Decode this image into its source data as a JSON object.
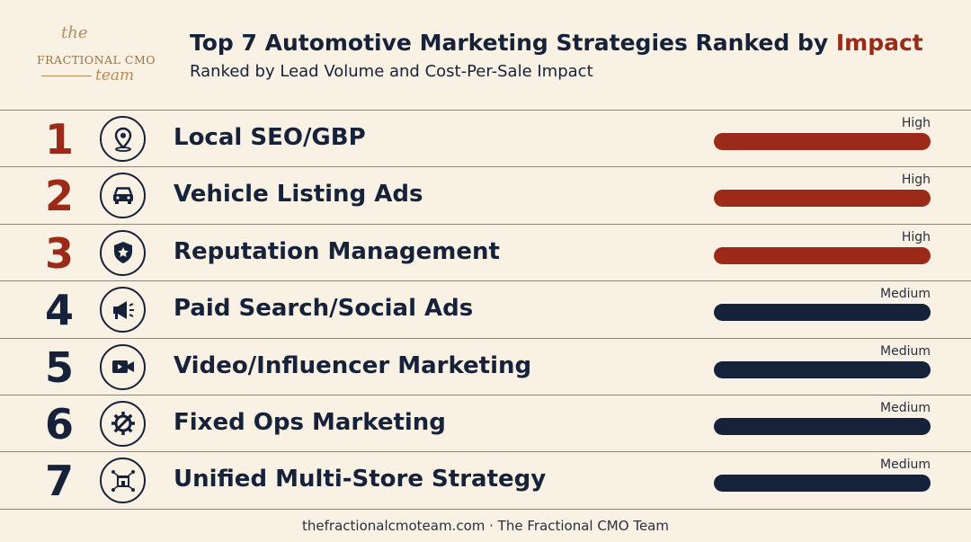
{
  "logo": {
    "the": "the",
    "brand": "FRACTIONAL CMO",
    "team": "team"
  },
  "header": {
    "title_main": "Top 7 Automotive Marketing Strategies Ranked by ",
    "title_accent": "Impact",
    "subtitle": "Ranked by Lead Volume and Cost-Per-Sale Impact"
  },
  "colors": {
    "high": "#9b2b18",
    "medium": "#16213a",
    "background": "#f8f1e4"
  },
  "strategies": [
    {
      "rank": "1",
      "label": "Local SEO/GBP",
      "impact": "High",
      "icon": "map-pin-icon"
    },
    {
      "rank": "2",
      "label": "Vehicle Listing Ads",
      "impact": "High",
      "icon": "car-icon"
    },
    {
      "rank": "3",
      "label": "Reputation Management",
      "impact": "High",
      "icon": "shield-star-icon"
    },
    {
      "rank": "4",
      "label": "Paid Search/Social Ads",
      "impact": "Medium",
      "icon": "megaphone-icon"
    },
    {
      "rank": "5",
      "label": "Video/Influencer Marketing",
      "impact": "Medium",
      "icon": "video-camera-icon"
    },
    {
      "rank": "6",
      "label": "Fixed Ops Marketing",
      "impact": "Medium",
      "icon": "gear-wrench-icon"
    },
    {
      "rank": "7",
      "label": "Unified Multi-Store Strategy",
      "impact": "Medium",
      "icon": "multi-store-icon"
    }
  ],
  "footer": "thefractionalcmoteam.com · The Fractional CMO Team"
}
